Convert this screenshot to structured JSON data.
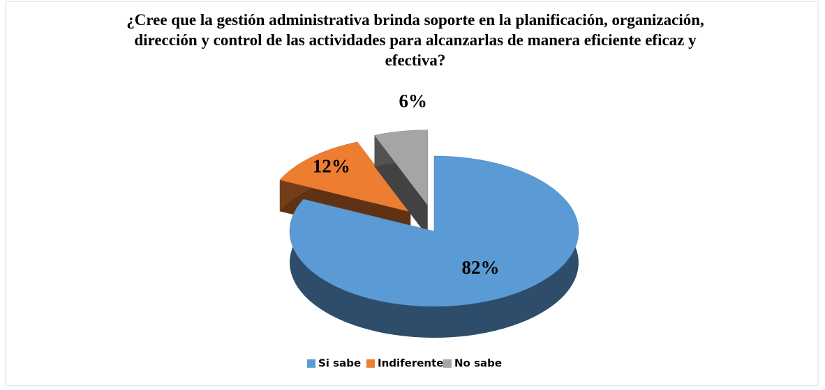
{
  "chart_data": {
    "type": "pie3d",
    "title": "¿Cree que la gestión administrativa brinda soporte en la planificación, organización, dirección y control de las actividades para alcanzarlas de manera eficiente eficaz y efectiva?",
    "categories": [
      "Si sabe",
      "Indiferente",
      "No sabe"
    ],
    "values": [
      82,
      12,
      6
    ],
    "value_labels": [
      "82%",
      "12%",
      "6%"
    ],
    "colors": [
      "#5b9bd5",
      "#ed7d31",
      "#a5a5a5"
    ],
    "legend": "bottom"
  }
}
